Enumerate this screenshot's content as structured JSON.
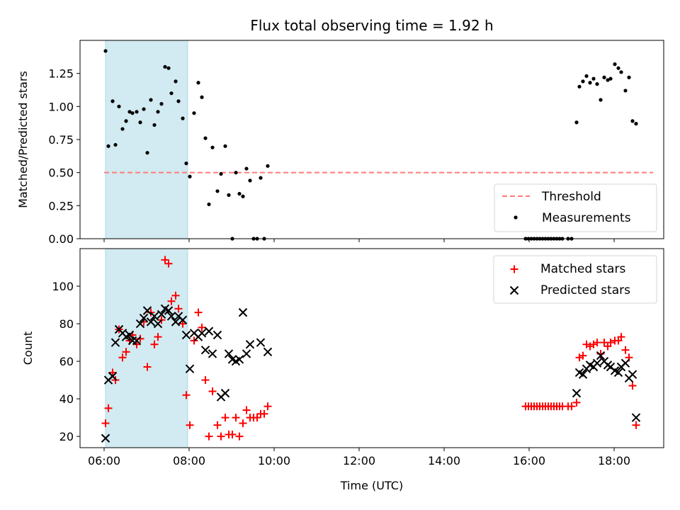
{
  "chart_data": [
    {
      "type": "scatter",
      "title": "Flux total observing time = 1.92 h",
      "xlabel": "",
      "ylabel": "Matched/Predicted stars",
      "ylim": [
        0,
        1.5
      ],
      "yticks": [
        "0.00",
        "0.25",
        "0.50",
        "0.75",
        "1.00",
        "1.25"
      ],
      "x_range": [
        "05:26",
        "19:10"
      ],
      "shaded_interval": {
        "start": "06:02",
        "end": "07:58",
        "color": "#add8e6"
      },
      "threshold": {
        "name": "Threshold",
        "value": 0.5,
        "x_start": "06:00",
        "x_end": "18:55",
        "color": "#ff7b7b"
      },
      "legend": {
        "position": "lower right",
        "entries": [
          "Threshold",
          "Measurements"
        ]
      },
      "series": [
        {
          "name": "Measurements",
          "color": "#000000",
          "marker": "dot",
          "points": [
            [
              "06:02",
              1.42
            ],
            [
              "06:06",
              0.7
            ],
            [
              "06:12",
              1.04
            ],
            [
              "06:16",
              0.71
            ],
            [
              "06:21",
              1.0
            ],
            [
              "06:26",
              0.83
            ],
            [
              "06:31",
              0.89
            ],
            [
              "06:36",
              0.96
            ],
            [
              "06:40",
              0.95
            ],
            [
              "06:46",
              0.96
            ],
            [
              "06:51",
              0.88
            ],
            [
              "06:56",
              0.98
            ],
            [
              "07:01",
              0.65
            ],
            [
              "07:06",
              1.05
            ],
            [
              "07:11",
              0.86
            ],
            [
              "07:16",
              0.96
            ],
            [
              "07:21",
              1.02
            ],
            [
              "07:26",
              1.3
            ],
            [
              "07:31",
              1.29
            ],
            [
              "07:35",
              1.1
            ],
            [
              "07:41",
              1.19
            ],
            [
              "07:45",
              1.04
            ],
            [
              "07:51",
              0.91
            ],
            [
              "07:56",
              0.57
            ],
            [
              "08:01",
              0.47
            ],
            [
              "08:07",
              0.95
            ],
            [
              "08:13",
              1.18
            ],
            [
              "08:18",
              1.07
            ],
            [
              "08:23",
              0.76
            ],
            [
              "08:28",
              0.26
            ],
            [
              "08:33",
              0.69
            ],
            [
              "08:40",
              0.36
            ],
            [
              "08:45",
              0.49
            ],
            [
              "08:51",
              0.7
            ],
            [
              "08:56",
              0.33
            ],
            [
              "09:01",
              0.0
            ],
            [
              "09:06",
              0.5
            ],
            [
              "09:11",
              0.34
            ],
            [
              "09:16",
              0.32
            ],
            [
              "09:21",
              0.53
            ],
            [
              "09:26",
              0.44
            ],
            [
              "09:31",
              0.0
            ],
            [
              "09:36",
              0.0
            ],
            [
              "09:41",
              0.46
            ],
            [
              "09:46",
              0.0
            ],
            [
              "09:51",
              0.55
            ],
            [
              "15:55",
              0.0
            ],
            [
              "15:59",
              0.0
            ],
            [
              "16:03",
              0.0
            ],
            [
              "16:07",
              0.0
            ],
            [
              "16:11",
              0.0
            ],
            [
              "16:15",
              0.0
            ],
            [
              "16:19",
              0.0
            ],
            [
              "16:23",
              0.0
            ],
            [
              "16:27",
              0.0
            ],
            [
              "16:31",
              0.0
            ],
            [
              "16:35",
              0.0
            ],
            [
              "16:39",
              0.0
            ],
            [
              "16:43",
              0.0
            ],
            [
              "16:47",
              0.0
            ],
            [
              "16:55",
              0.0
            ],
            [
              "17:00",
              0.0
            ],
            [
              "17:07",
              0.88
            ],
            [
              "17:11",
              1.15
            ],
            [
              "17:16",
              1.19
            ],
            [
              "17:21",
              1.23
            ],
            [
              "17:26",
              1.18
            ],
            [
              "17:31",
              1.21
            ],
            [
              "17:36",
              1.17
            ],
            [
              "17:41",
              1.05
            ],
            [
              "17:46",
              1.22
            ],
            [
              "17:51",
              1.2
            ],
            [
              "17:55",
              1.21
            ],
            [
              "18:01",
              1.32
            ],
            [
              "18:06",
              1.29
            ],
            [
              "18:10",
              1.26
            ],
            [
              "18:16",
              1.12
            ],
            [
              "18:21",
              1.22
            ],
            [
              "18:26",
              0.89
            ],
            [
              "18:31",
              0.87
            ]
          ]
        }
      ]
    },
    {
      "type": "scatter",
      "title": "",
      "xlabel": "Time (UTC)",
      "ylabel": "Count",
      "ylim": [
        14,
        120
      ],
      "yticks": [
        "20",
        "40",
        "60",
        "80",
        "100"
      ],
      "xticks": [
        "06:00",
        "08:00",
        "10:00",
        "12:00",
        "14:00",
        "16:00",
        "18:00"
      ],
      "x_range": [
        "05:26",
        "19:10"
      ],
      "shaded_interval": {
        "start": "06:02",
        "end": "07:58",
        "color": "#add8e6"
      },
      "legend": {
        "position": "upper right",
        "entries": [
          "Matched stars",
          "Predicted stars"
        ]
      },
      "series": [
        {
          "name": "Matched stars",
          "color": "#ff0000",
          "marker": "plus",
          "points": [
            [
              "06:02",
              27
            ],
            [
              "06:06",
              35
            ],
            [
              "06:12",
              54
            ],
            [
              "06:16",
              50
            ],
            [
              "06:21",
              77
            ],
            [
              "06:26",
              62
            ],
            [
              "06:31",
              65
            ],
            [
              "06:36",
              71
            ],
            [
              "06:40",
              74
            ],
            [
              "06:46",
              69
            ],
            [
              "06:51",
              72
            ],
            [
              "06:56",
              81
            ],
            [
              "07:01",
              57
            ],
            [
              "07:06",
              86
            ],
            [
              "07:11",
              69
            ],
            [
              "07:16",
              73
            ],
            [
              "07:21",
              82
            ],
            [
              "07:26",
              114
            ],
            [
              "07:31",
              112
            ],
            [
              "07:35",
              92
            ],
            [
              "07:41",
              95
            ],
            [
              "07:45",
              88
            ],
            [
              "07:51",
              80
            ],
            [
              "07:56",
              42
            ],
            [
              "08:01",
              26
            ],
            [
              "08:07",
              71
            ],
            [
              "08:13",
              86
            ],
            [
              "08:18",
              78
            ],
            [
              "08:23",
              50
            ],
            [
              "08:28",
              20
            ],
            [
              "08:33",
              44
            ],
            [
              "08:40",
              26
            ],
            [
              "08:45",
              20
            ],
            [
              "08:51",
              30
            ],
            [
              "08:56",
              21
            ],
            [
              "09:01",
              21
            ],
            [
              "09:06",
              30
            ],
            [
              "09:11",
              20
            ],
            [
              "09:16",
              27
            ],
            [
              "09:21",
              34
            ],
            [
              "09:26",
              30
            ],
            [
              "09:31",
              30
            ],
            [
              "09:36",
              30
            ],
            [
              "09:41",
              32
            ],
            [
              "09:46",
              32
            ],
            [
              "09:51",
              36
            ],
            [
              "15:55",
              36
            ],
            [
              "15:59",
              36
            ],
            [
              "16:03",
              36
            ],
            [
              "16:07",
              36
            ],
            [
              "16:11",
              36
            ],
            [
              "16:15",
              36
            ],
            [
              "16:19",
              36
            ],
            [
              "16:23",
              36
            ],
            [
              "16:27",
              36
            ],
            [
              "16:31",
              36
            ],
            [
              "16:35",
              36
            ],
            [
              "16:39",
              36
            ],
            [
              "16:43",
              36
            ],
            [
              "16:47",
              36
            ],
            [
              "16:55",
              36
            ],
            [
              "17:00",
              36
            ],
            [
              "17:07",
              38
            ],
            [
              "17:11",
              62
            ],
            [
              "17:16",
              63
            ],
            [
              "17:21",
              69
            ],
            [
              "17:26",
              68
            ],
            [
              "17:31",
              69
            ],
            [
              "17:36",
              70
            ],
            [
              "17:41",
              64
            ],
            [
              "17:46",
              70
            ],
            [
              "17:51",
              68
            ],
            [
              "17:55",
              70
            ],
            [
              "18:01",
              71
            ],
            [
              "18:06",
              71
            ],
            [
              "18:10",
              73
            ],
            [
              "18:16",
              66
            ],
            [
              "18:21",
              62
            ],
            [
              "18:26",
              47
            ],
            [
              "18:31",
              26
            ]
          ]
        },
        {
          "name": "Predicted stars",
          "color": "#000000",
          "marker": "x",
          "points": [
            [
              "06:02",
              19
            ],
            [
              "06:06",
              50
            ],
            [
              "06:12",
              52
            ],
            [
              "06:16",
              70
            ],
            [
              "06:21",
              77
            ],
            [
              "06:26",
              75
            ],
            [
              "06:31",
              73
            ],
            [
              "06:36",
              74
            ],
            [
              "06:40",
              71
            ],
            [
              "06:46",
              71
            ],
            [
              "06:51",
              80
            ],
            [
              "06:56",
              83
            ],
            [
              "07:01",
              87
            ],
            [
              "07:06",
              81
            ],
            [
              "07:11",
              84
            ],
            [
              "07:16",
              80
            ],
            [
              "07:21",
              85
            ],
            [
              "07:26",
              88
            ],
            [
              "07:31",
              87
            ],
            [
              "07:35",
              84
            ],
            [
              "07:41",
              81
            ],
            [
              "07:45",
              84
            ],
            [
              "07:51",
              82
            ],
            [
              "07:56",
              74
            ],
            [
              "08:01",
              56
            ],
            [
              "08:07",
              75
            ],
            [
              "08:13",
              73
            ],
            [
              "08:18",
              75
            ],
            [
              "08:23",
              66
            ],
            [
              "08:28",
              76
            ],
            [
              "08:33",
              64
            ],
            [
              "08:40",
              74
            ],
            [
              "08:45",
              41
            ],
            [
              "08:51",
              43
            ],
            [
              "08:56",
              64
            ],
            [
              "09:01",
              61
            ],
            [
              "09:06",
              60
            ],
            [
              "09:11",
              61
            ],
            [
              "09:16",
              86
            ],
            [
              "09:21",
              64
            ],
            [
              "09:26",
              69
            ],
            [
              "09:41",
              70
            ],
            [
              "09:51",
              65
            ],
            [
              "17:07",
              43
            ],
            [
              "17:11",
              54
            ],
            [
              "17:16",
              53
            ],
            [
              "17:21",
              56
            ],
            [
              "17:26",
              58
            ],
            [
              "17:31",
              57
            ],
            [
              "17:36",
              59
            ],
            [
              "17:41",
              63
            ],
            [
              "17:46",
              60
            ],
            [
              "17:51",
              58
            ],
            [
              "17:55",
              57
            ],
            [
              "18:01",
              55
            ],
            [
              "18:06",
              54
            ],
            [
              "18:10",
              57
            ],
            [
              "18:16",
              59
            ],
            [
              "18:21",
              51
            ],
            [
              "18:26",
              53
            ],
            [
              "18:31",
              30
            ]
          ]
        }
      ]
    }
  ]
}
